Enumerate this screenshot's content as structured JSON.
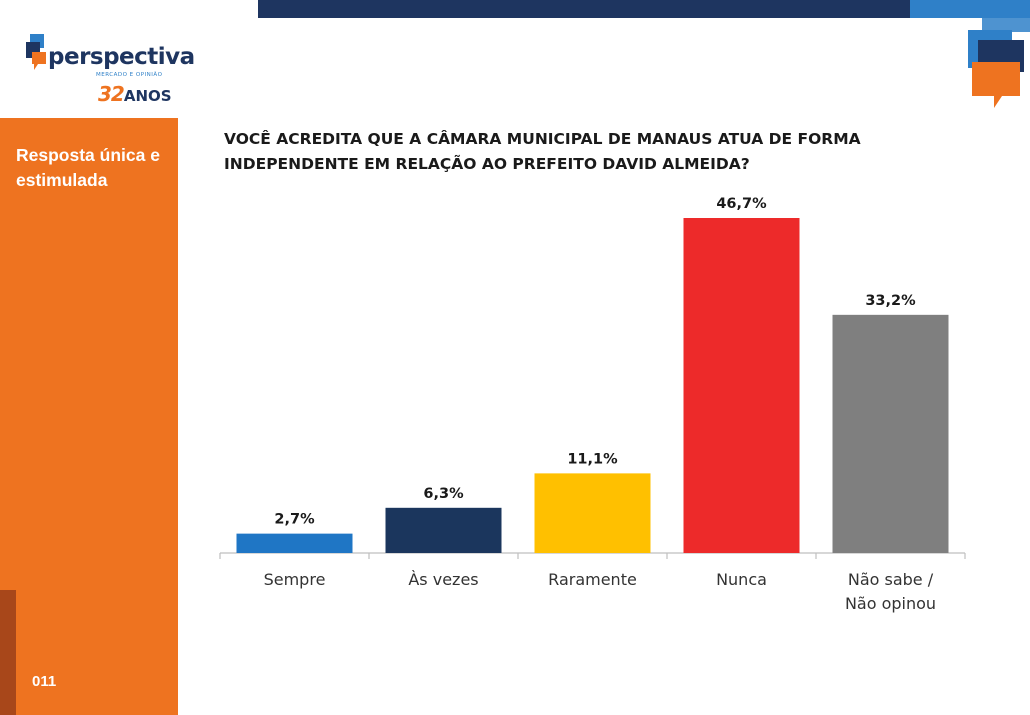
{
  "brand": {
    "name": "perspectiva",
    "tagline": "MERCADO E OPINIÃO",
    "years_number": "32",
    "years_word": "ANOS",
    "colors": {
      "navy": "#1e3560",
      "blue": "#2f80c8",
      "orange": "#ee7320"
    }
  },
  "sidebar": {
    "label": "Resposta única e estimulada",
    "page_number": "011"
  },
  "question": "VOCÊ ACREDITA QUE A CÂMARA MUNICIPAL DE MANAUS ATUA DE FORMA INDEPENDENTE EM RELAÇÃO AO PREFEITO DAVID ALMEIDA?",
  "chart_data": {
    "type": "bar",
    "title": "VOCÊ ACREDITA QUE A CÂMARA MUNICIPAL DE MANAUS ATUA DE FORMA INDEPENDENTE EM RELAÇÃO AO PREFEITO DAVID ALMEIDA?",
    "categories": [
      [
        "Sempre"
      ],
      [
        "Às vezes"
      ],
      [
        "Raramente"
      ],
      [
        "Nunca"
      ],
      [
        "Não sabe /",
        "Não opinou"
      ]
    ],
    "values": [
      2.7,
      6.3,
      11.1,
      46.7,
      33.2
    ],
    "value_labels": [
      "2,7%",
      "6,3%",
      "11,1%",
      "46,7%",
      "33,2%"
    ],
    "colors": [
      "#1f76c5",
      "#1b365d",
      "#ffc000",
      "#ed2a2a",
      "#7f7f7f"
    ],
    "ylim": [
      0,
      46.7
    ],
    "grid": false,
    "legend": "none"
  }
}
